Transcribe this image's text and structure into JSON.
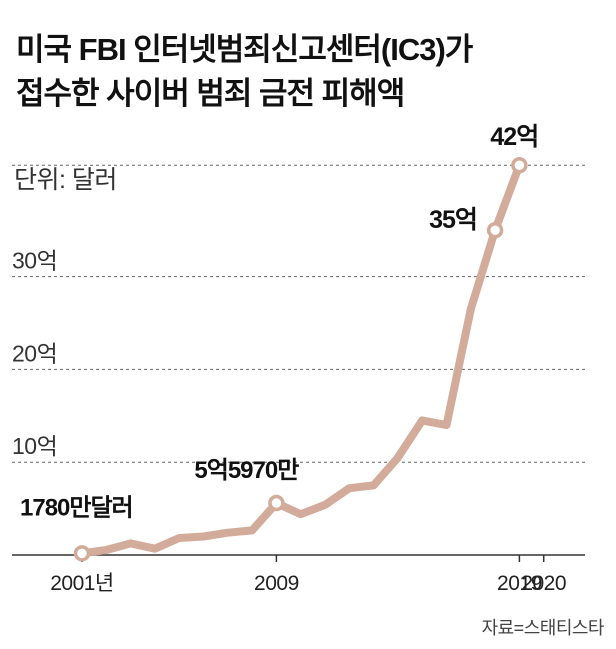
{
  "title_line1": "미국 FBI 인터넷범죄신고센터(IC3)가",
  "title_line2": "접수한 사이버 범죄 금전 피해액",
  "unit_label": "단위: 달러",
  "source": "자료=스태티스타",
  "colors": {
    "line": "#d2ab9b",
    "grid": "#666666",
    "axis": "#333333",
    "marker_fill": "#ffffff"
  },
  "chart_data": {
    "type": "line",
    "unit": "달러",
    "x": [
      2001,
      2002,
      2003,
      2004,
      2005,
      2006,
      2007,
      2008,
      2009,
      2010,
      2011,
      2012,
      2013,
      2014,
      2015,
      2016,
      2017,
      2018,
      2019,
      2020
    ],
    "values": [
      0.178,
      0.54,
      1.25,
      0.68,
      1.83,
      1.99,
      2.4,
      2.65,
      5.597,
      4.4,
      5.4,
      7.2,
      7.5,
      10.5,
      14.5,
      14.0,
      26.5,
      35.0,
      42.0,
      0
    ],
    "xticks": [
      {
        "x": 2001,
        "label": "2001년"
      },
      {
        "x": 2009,
        "label": "2009"
      },
      {
        "x": 2019,
        "label": "2019"
      },
      {
        "x": 2020,
        "label": "2020"
      }
    ],
    "yticks": [
      {
        "y": 10,
        "label": "10억"
      },
      {
        "y": 20,
        "label": "20억"
      },
      {
        "y": 30,
        "label": "30억"
      }
    ],
    "ylim": [
      0,
      42
    ],
    "grid": true,
    "annotations": [
      {
        "index": 0,
        "label": "1780만달러"
      },
      {
        "index": 8,
        "label": "5억5970만"
      },
      {
        "index": 17,
        "label": "35억"
      },
      {
        "index": 18,
        "label": "42억"
      }
    ]
  }
}
